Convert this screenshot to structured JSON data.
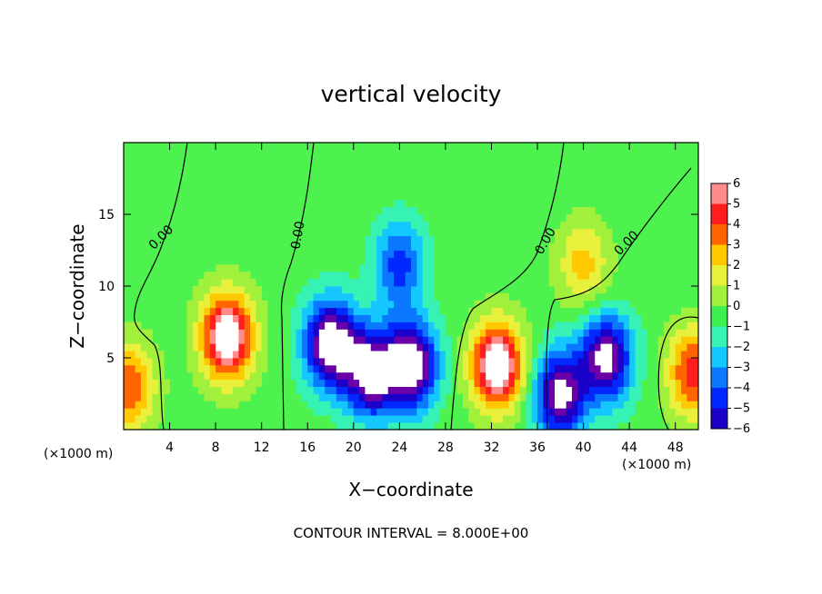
{
  "chart_data": {
    "type": "heatmap",
    "title": "vertical velocity",
    "xlabel": "X−coordinate",
    "ylabel": "Z−coordinate",
    "x_unit": "(×1000 m)",
    "z_unit": "(×1000 m)",
    "xlim": [
      0,
      50
    ],
    "ylim": [
      0,
      20
    ],
    "xticks": [
      4,
      8,
      12,
      16,
      20,
      24,
      28,
      32,
      36,
      40,
      44,
      48
    ],
    "yticks": [
      5,
      10,
      15
    ],
    "xtick_labels": [
      "4",
      "8",
      "12",
      "16",
      "20",
      "24",
      "28",
      "32",
      "36",
      "40",
      "44",
      "48"
    ],
    "ytick_labels": [
      "5",
      "10",
      "15"
    ],
    "colorbar": {
      "range": [
        -6,
        6
      ],
      "ticks": [
        6,
        5,
        4,
        3,
        2,
        1,
        0,
        -1,
        -2,
        -3,
        -4,
        -5,
        -6
      ],
      "tick_labels": [
        "6",
        "5",
        "4",
        "3",
        "2",
        "1",
        "0",
        "−1",
        "−2",
        "−3",
        "−4",
        "−5",
        "−6"
      ]
    },
    "zero_contour_labels": [
      {
        "text": "0.00",
        "x": 3.5,
        "z": 13.2,
        "angle": -45
      },
      {
        "text": "0.00",
        "x": 15.5,
        "z": 13.5,
        "angle": -80
      },
      {
        "text": "0.00",
        "x": 37.0,
        "z": 13.0,
        "angle": -60
      },
      {
        "text": "0.00",
        "x": 44.0,
        "z": 12.8,
        "angle": -45
      }
    ],
    "contour_interval_note": "CONTOUR INTERVAL =  8.000E+00",
    "features": [
      {
        "x": 0.5,
        "z": 3.0,
        "w": 4.5
      },
      {
        "x": 9.0,
        "z": 6.5,
        "w": 8.0
      },
      {
        "x": 18.0,
        "z": 6.0,
        "w": -8.0
      },
      {
        "x": 21.5,
        "z": 4.0,
        "w": -7.5
      },
      {
        "x": 25.0,
        "z": 4.5,
        "w": -8.0
      },
      {
        "x": 32.5,
        "z": 4.5,
        "w": 8.0
      },
      {
        "x": 38.0,
        "z": 2.5,
        "w": -7.0
      },
      {
        "x": 42.0,
        "z": 5.0,
        "w": -7.0
      },
      {
        "x": 49.5,
        "z": 4.0,
        "w": 5.0
      },
      {
        "x": 24.0,
        "z": 11.5,
        "w": -4.0
      },
      {
        "x": 40.0,
        "z": 11.5,
        "w": 3.0
      }
    ]
  }
}
